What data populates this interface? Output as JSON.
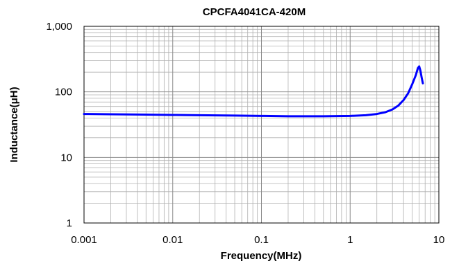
{
  "chart_data": {
    "type": "line",
    "title": "CPCFA4041CA-420M",
    "xlabel": "Frequency(MHz)",
    "ylabel": "Inductance(μH)",
    "x_scale": "log",
    "y_scale": "log",
    "xlim": [
      0.001,
      10
    ],
    "ylim": [
      1,
      1000
    ],
    "x_ticks": [
      0.001,
      0.01,
      0.1,
      1,
      10
    ],
    "x_tick_labels": [
      "0.001",
      "0.01",
      "0.1",
      "1",
      "10"
    ],
    "y_ticks": [
      1,
      10,
      100,
      1000
    ],
    "y_tick_labels": [
      "1",
      "10",
      "100",
      "1,000"
    ],
    "grid": true,
    "legend": "none",
    "colors": {
      "line": "#0000ff",
      "grid": "#b0b0b0",
      "frame": "#000000"
    },
    "series": [
      {
        "x": [
          0.001,
          0.002,
          0.005,
          0.01,
          0.02,
          0.05,
          0.1,
          0.2,
          0.5,
          1,
          1.5,
          2,
          2.5,
          3,
          3.5,
          4,
          4.5,
          5,
          5.5,
          5.8,
          6.0,
          6.2,
          6.4,
          6.6
        ],
        "y": [
          46,
          45.5,
          45,
          44.5,
          44,
          43.5,
          43,
          42.5,
          42.5,
          43,
          44,
          46,
          49,
          54,
          62,
          75,
          95,
          130,
          180,
          230,
          245,
          210,
          165,
          135
        ]
      }
    ]
  }
}
